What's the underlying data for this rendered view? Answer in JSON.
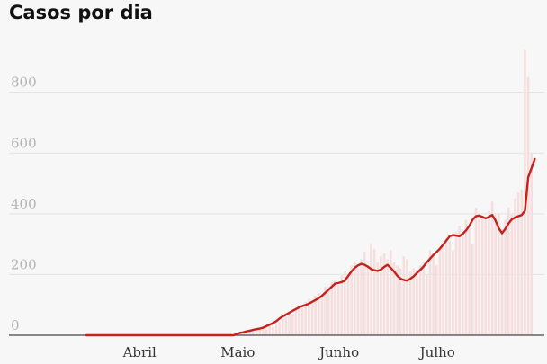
{
  "title": "Casos por dia",
  "colors": {
    "line": "#c8201b",
    "bar": "#f5dedd",
    "grid": "#e2e2e2",
    "axis": "#444444"
  },
  "chart_data": {
    "type": "bar",
    "title": "Casos por dia",
    "xlabel": "",
    "ylabel": "",
    "ylim": [
      0,
      950
    ],
    "yticks": [
      0,
      200,
      400,
      600,
      800
    ],
    "grid": true,
    "legend": "none",
    "x_range": [
      "2020-03-16",
      "2020-08-01"
    ],
    "month_ticks": [
      {
        "label": "Abril",
        "date": "2020-04-01"
      },
      {
        "label": "Maio",
        "date": "2020-05-01"
      },
      {
        "label": "Junho",
        "date": "2020-06-01"
      },
      {
        "label": "Julho",
        "date": "2020-07-01"
      }
    ],
    "series": [
      {
        "type": "bar",
        "start": "2020-03-16",
        "values": [
          0,
          0,
          0,
          0,
          0,
          0,
          0,
          0,
          0,
          0,
          0,
          0,
          0,
          0,
          0,
          0,
          0,
          0,
          0,
          0,
          0,
          0,
          0,
          0,
          0,
          0,
          0,
          0,
          0,
          0,
          0,
          0,
          0,
          0,
          0,
          0,
          0,
          0,
          0,
          0,
          0,
          0,
          0,
          0,
          0,
          0,
          2,
          4,
          6,
          8,
          10,
          14,
          20,
          18,
          25,
          30,
          35,
          28,
          40,
          45,
          55,
          60,
          75,
          70,
          85,
          95,
          90,
          110,
          120,
          105,
          130,
          140,
          125,
          160,
          150,
          175,
          180,
          165,
          200,
          210,
          195,
          230,
          240,
          220,
          250,
          275,
          230,
          300,
          285,
          240,
          260,
          270,
          250,
          280,
          240,
          230,
          220,
          260,
          250,
          210,
          220,
          215,
          230,
          240,
          200,
          280,
          260,
          230,
          290,
          300,
          320,
          310,
          280,
          340,
          360,
          330,
          380,
          350,
          300,
          420,
          400,
          390,
          380,
          410,
          440,
          395,
          400,
          350,
          380,
          420,
          400,
          450,
          470,
          480,
          940,
          850,
          600
        ]
      },
      {
        "type": "line",
        "start": "2020-03-16",
        "values": [
          0,
          0,
          0,
          0,
          0,
          0,
          0,
          0,
          0,
          0,
          0,
          0,
          0,
          0,
          0,
          0,
          0,
          0,
          0,
          0,
          0,
          0,
          0,
          0,
          0,
          0,
          0,
          0,
          0,
          0,
          0,
          0,
          0,
          0,
          0,
          0,
          0,
          0,
          0,
          0,
          0,
          0,
          0,
          0,
          0,
          0,
          4,
          8,
          10,
          13,
          15,
          18,
          20,
          22,
          25,
          30,
          35,
          40,
          46,
          55,
          62,
          68,
          74,
          80,
          86,
          92,
          96,
          100,
          104,
          110,
          116,
          122,
          130,
          140,
          150,
          160,
          170,
          172,
          175,
          180,
          195,
          210,
          222,
          230,
          235,
          232,
          226,
          218,
          214,
          212,
          216,
          225,
          232,
          222,
          210,
          196,
          186,
          182,
          180,
          186,
          194,
          205,
          215,
          226,
          240,
          252,
          264,
          274,
          285,
          298,
          312,
          326,
          330,
          328,
          326,
          334,
          345,
          360,
          380,
          392,
          394,
          390,
          385,
          390,
          396,
          378,
          352,
          336,
          350,
          368,
          382,
          388,
          392,
          396,
          410,
          520,
          550,
          580
        ]
      }
    ]
  }
}
